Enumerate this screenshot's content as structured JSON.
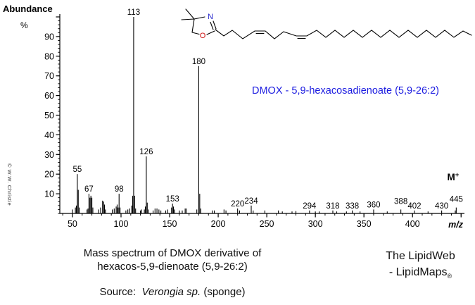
{
  "page": {
    "ylabel_title": "Abundance",
    "ylabel_unit": "%",
    "annotation": "DMOX - 5,9-hexacosadienoate (5,9-26:2)",
    "annotation_color": "#1b1be0",
    "copyright": "© W.W. Christie",
    "caption_line1": "Mass spectrum of DMOX derivative of",
    "caption_line2": "hexacos-5,9-dienoate (5,9-26:2)",
    "source_label": "Source:",
    "source_species": "Verongia sp.",
    "source_suffix": "(sponge)",
    "brand_line1": "The LipidWeb",
    "brand_line2": "- LipidMaps",
    "brand_reg": "®"
  },
  "molecule": {
    "n_atom": "N",
    "o_atom": "O",
    "n_color": "#2121cc",
    "o_color": "#cc1111"
  },
  "chart_data": {
    "type": "bar",
    "title": "Mass spectrum of DMOX derivative of hexacos-5,9-dienoate (5,9-26:2)",
    "xlabel": "m/z",
    "ylabel": "Abundance %",
    "xlim": [
      37,
      452
    ],
    "ylim": [
      0,
      100
    ],
    "grid": false,
    "molecular_ion": {
      "label": "M",
      "charge": "+",
      "mz": 445
    },
    "x_major_ticks": [
      50,
      100,
      150,
      200,
      250,
      300,
      350,
      400,
      450
    ],
    "x_labeled_ticks": [
      50,
      100,
      150,
      200,
      250,
      300,
      350,
      400
    ],
    "x_minor_step": 10,
    "y_major_ticks": [
      10,
      20,
      30,
      40,
      50,
      60,
      70,
      80,
      90
    ],
    "y_minor_step": 2,
    "peaks": [
      [
        50,
        2
      ],
      [
        53,
        3
      ],
      [
        54,
        4
      ],
      [
        55,
        20,
        "55"
      ],
      [
        56,
        12
      ],
      [
        57,
        3
      ],
      [
        65,
        2
      ],
      [
        66,
        2.5
      ],
      [
        67,
        10,
        "67"
      ],
      [
        68,
        8
      ],
      [
        69,
        9
      ],
      [
        70,
        8
      ],
      [
        71,
        3
      ],
      [
        77,
        2
      ],
      [
        79,
        3
      ],
      [
        81,
        6.5
      ],
      [
        82,
        6
      ],
      [
        83,
        4.5
      ],
      [
        84,
        2
      ],
      [
        91,
        2
      ],
      [
        93,
        2.5
      ],
      [
        95,
        3.5
      ],
      [
        96,
        4.5
      ],
      [
        97,
        3
      ],
      [
        98,
        10,
        "98"
      ],
      [
        99,
        3
      ],
      [
        105,
        1.5
      ],
      [
        107,
        2
      ],
      [
        109,
        2.5
      ],
      [
        111,
        4
      ],
      [
        112,
        9
      ],
      [
        113,
        100,
        "113"
      ],
      [
        114,
        9
      ],
      [
        115,
        2.5
      ],
      [
        120,
        1.5
      ],
      [
        121,
        2
      ],
      [
        124,
        2
      ],
      [
        125,
        3.5
      ],
      [
        126,
        29,
        "126"
      ],
      [
        127,
        5.5
      ],
      [
        128,
        2
      ],
      [
        133,
        1.5
      ],
      [
        135,
        2.5
      ],
      [
        137,
        2.5
      ],
      [
        139,
        2
      ],
      [
        141,
        1.5
      ],
      [
        146,
        1.5
      ],
      [
        148,
        2
      ],
      [
        152,
        3
      ],
      [
        153,
        5,
        "153"
      ],
      [
        154,
        3.5
      ],
      [
        155,
        2
      ],
      [
        160,
        1.5
      ],
      [
        163,
        1.5
      ],
      [
        166,
        2.5
      ],
      [
        167,
        2.5
      ],
      [
        178,
        2
      ],
      [
        180,
        75,
        "180"
      ],
      [
        181,
        10
      ],
      [
        182,
        2.5
      ],
      [
        194,
        1.5
      ],
      [
        196,
        1.5
      ],
      [
        206,
        2
      ],
      [
        208,
        1.5
      ],
      [
        220,
        2.5,
        "220"
      ],
      [
        222,
        1.5
      ],
      [
        234,
        4,
        "234"
      ],
      [
        236,
        1.5
      ],
      [
        248,
        1.5
      ],
      [
        262,
        1.5
      ],
      [
        266,
        1
      ],
      [
        276,
        1
      ],
      [
        280,
        1.2
      ],
      [
        294,
        1.5,
        "294"
      ],
      [
        300,
        1
      ],
      [
        304,
        1
      ],
      [
        318,
        1.5,
        "318"
      ],
      [
        322,
        1
      ],
      [
        332,
        1
      ],
      [
        338,
        1.5,
        "338"
      ],
      [
        346,
        1
      ],
      [
        360,
        2,
        "360"
      ],
      [
        374,
        1
      ],
      [
        388,
        2,
        "388",
        -5
      ],
      [
        402,
        1.5,
        "402"
      ],
      [
        416,
        1
      ],
      [
        430,
        1.5,
        "430"
      ],
      [
        444,
        1.5
      ],
      [
        445,
        3,
        "445",
        -5
      ]
    ]
  }
}
